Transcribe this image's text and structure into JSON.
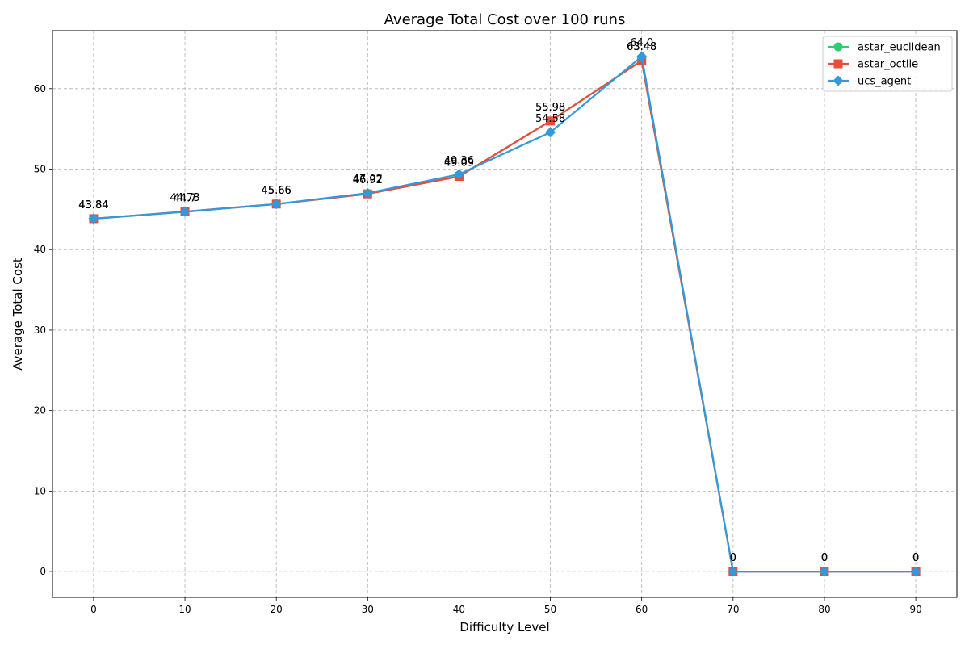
{
  "chart_data": {
    "type": "line",
    "title": "Average Total Cost over 100 runs",
    "xlabel": "Difficulty Level",
    "ylabel": "Average Total Cost",
    "x": [
      0,
      10,
      20,
      30,
      40,
      50,
      60,
      70,
      80,
      90
    ],
    "xlim": [
      -4.5,
      94.5
    ],
    "ylim": [
      -3.2,
      67.2
    ],
    "xticks": [
      0,
      10,
      20,
      30,
      40,
      50,
      60,
      70,
      80,
      90
    ],
    "yticks": [
      0,
      10,
      20,
      30,
      40,
      50,
      60
    ],
    "grid": true,
    "legend_position": "top-right",
    "series": [
      {
        "name": "astar_euclidean",
        "color": "#2ecc71",
        "marker": "circle",
        "values": [
          43.84,
          44.7,
          45.66,
          46.97,
          49.09,
          55.98,
          63.48,
          0,
          0,
          0
        ],
        "labels": [
          "43.84",
          "44.7",
          "45.66",
          "46.97",
          "49.09",
          "55.98",
          "63.48",
          "0",
          "0",
          "0"
        ]
      },
      {
        "name": "astar_octile",
        "color": "#e74c3c",
        "marker": "square",
        "values": [
          43.84,
          44.73,
          45.66,
          46.92,
          49.09,
          55.98,
          63.48,
          0,
          0,
          0
        ],
        "labels": [
          "43.84",
          "44.73",
          "45.66",
          "46.92",
          "49.09",
          "55.98",
          "63.48",
          "0",
          "0",
          "0"
        ]
      },
      {
        "name": "ucs_agent",
        "color": "#3498db",
        "marker": "diamond",
        "values": [
          43.84,
          44.7,
          45.66,
          47.02,
          49.36,
          54.58,
          64.0,
          0,
          0,
          0
        ],
        "labels": [
          "43.84",
          "44.7",
          "45.66",
          "47.02",
          "49.36",
          "54.58",
          "64.0",
          "0",
          "0",
          "0"
        ]
      }
    ]
  }
}
